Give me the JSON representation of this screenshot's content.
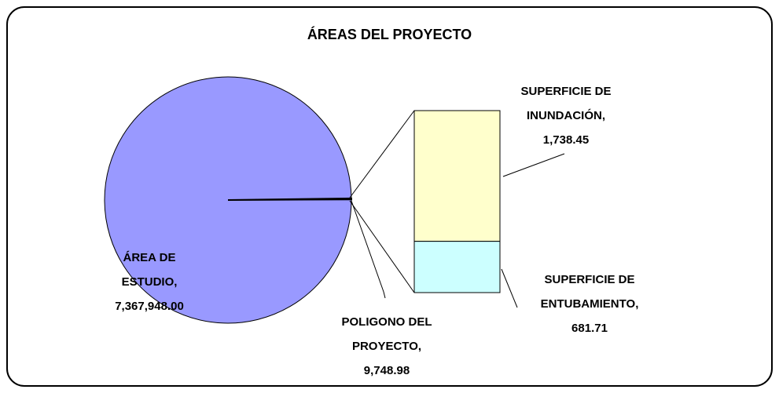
{
  "chart_data": {
    "type": "bar_of_pie",
    "title": "ÁREAS DEL PROYECTO",
    "label_separator": ",",
    "pie": {
      "categories": [
        "ÁREA DE ESTUDIO",
        "POLIGONO DEL PROYECTO"
      ],
      "values": [
        7367948.0,
        9748.98
      ],
      "value_labels": [
        "7,367,948.00",
        "9,748.98"
      ],
      "color": "#9999ff"
    },
    "bar": {
      "categories": [
        "SUPERFICIE DE INUNDACIÓN",
        "SUPERFICIE DE ENTUBAMIENTO"
      ],
      "values": [
        1738.45,
        681.71
      ],
      "value_labels": [
        "1,738.45",
        "681.71"
      ],
      "colors": [
        "#ffffcc",
        "#ccffff"
      ]
    }
  }
}
